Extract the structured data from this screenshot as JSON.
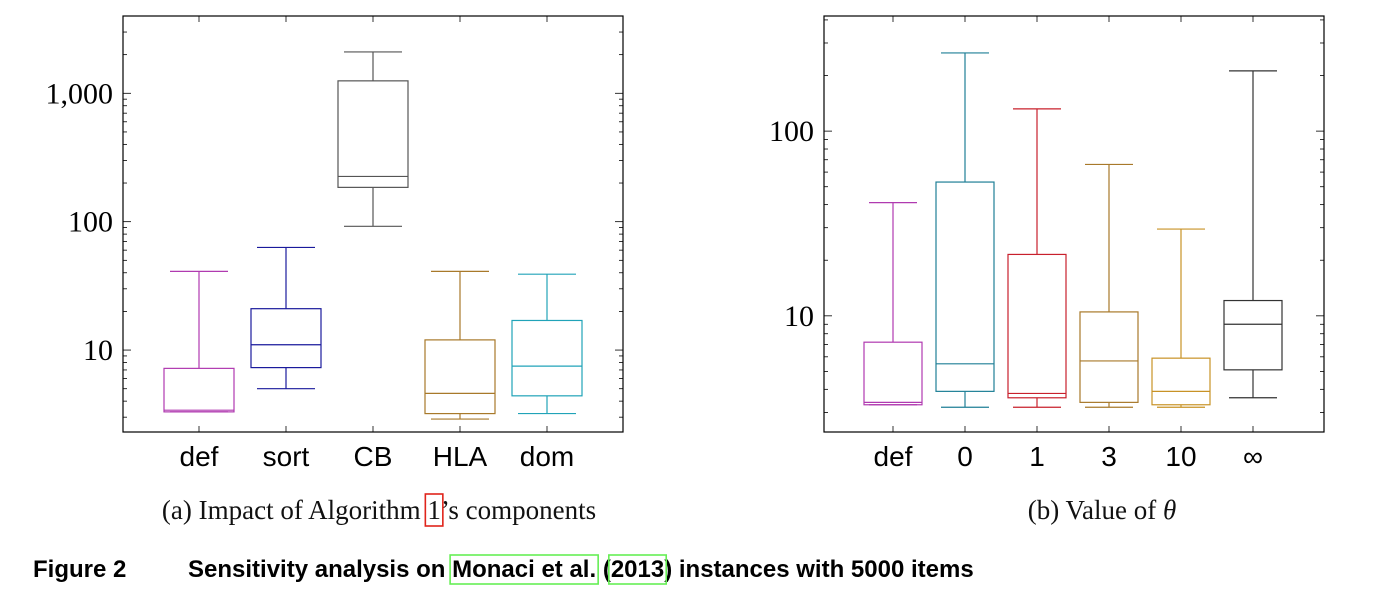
{
  "chart_data": [
    {
      "type": "box",
      "categories": [
        "def",
        "sort",
        "CB",
        "HLA",
        "dom"
      ],
      "yscale": "log",
      "ylim": [
        2.3,
        4000
      ],
      "yticks": [
        10,
        100,
        1000
      ],
      "ytick_labels": [
        "10",
        "100",
        "1,000"
      ],
      "subcaption_prefix": "(a) Impact of Algorithm ",
      "subcaption_ref": "1",
      "subcaption_suffix": "’s components",
      "boxes": [
        {
          "whisker_low": 3.3,
          "q1": 3.3,
          "median": 3.4,
          "q3": 7.2,
          "whisker_high": 41,
          "color": "#b03ab0"
        },
        {
          "whisker_low": 5.0,
          "q1": 7.3,
          "median": 11.0,
          "q3": 21.0,
          "whisker_high": 63,
          "color": "#1a1a9c"
        },
        {
          "whisker_low": 92,
          "q1": 185,
          "median": 225,
          "q3": 1250,
          "whisker_high": 2100,
          "color": "#555555"
        },
        {
          "whisker_low": 2.9,
          "q1": 3.2,
          "median": 4.6,
          "q3": 12.0,
          "whisker_high": 41,
          "color": "#a8792a"
        },
        {
          "whisker_low": 3.2,
          "q1": 4.4,
          "median": 7.5,
          "q3": 17.0,
          "whisker_high": 39,
          "color": "#20a3b8"
        }
      ]
    },
    {
      "type": "box",
      "categories": [
        "def",
        "0",
        "1",
        "3",
        "10",
        "∞"
      ],
      "yscale": "log",
      "ylim": [
        2.35,
        420
      ],
      "yticks": [
        10,
        100
      ],
      "ytick_labels": [
        "10",
        "100"
      ],
      "subcaption_prefix": "(b) Value of ",
      "subcaption_symbol": "θ",
      "boxes": [
        {
          "whisker_low": 3.3,
          "q1": 3.3,
          "median": 3.4,
          "q3": 7.2,
          "whisker_high": 41,
          "color": "#b03ab0"
        },
        {
          "whisker_low": 3.2,
          "q1": 3.9,
          "median": 5.5,
          "q3": 53,
          "whisker_high": 265,
          "color": "#1f7f96"
        },
        {
          "whisker_low": 3.2,
          "q1": 3.6,
          "median": 3.8,
          "q3": 21.5,
          "whisker_high": 132,
          "color": "#c8202c"
        },
        {
          "whisker_low": 3.2,
          "q1": 3.4,
          "median": 5.7,
          "q3": 10.5,
          "whisker_high": 66,
          "color": "#a8792a"
        },
        {
          "whisker_low": 3.2,
          "q1": 3.3,
          "median": 3.9,
          "q3": 5.9,
          "whisker_high": 29.5,
          "color": "#c89226"
        },
        {
          "whisker_low": 3.6,
          "q1": 5.1,
          "median": 9.0,
          "q3": 12.1,
          "whisker_high": 212,
          "color": "#333333"
        }
      ]
    }
  ],
  "caption": {
    "label": "Figure 2",
    "text_before": "Sensitivity analysis on ",
    "link_authors": "Monaci et al.",
    "text_paren_open": " (",
    "link_year": "2013",
    "text_after": ") instances with 5000 items"
  },
  "colors": {
    "ref_box": "#e0241b",
    "cite_box": "#66ee55"
  }
}
